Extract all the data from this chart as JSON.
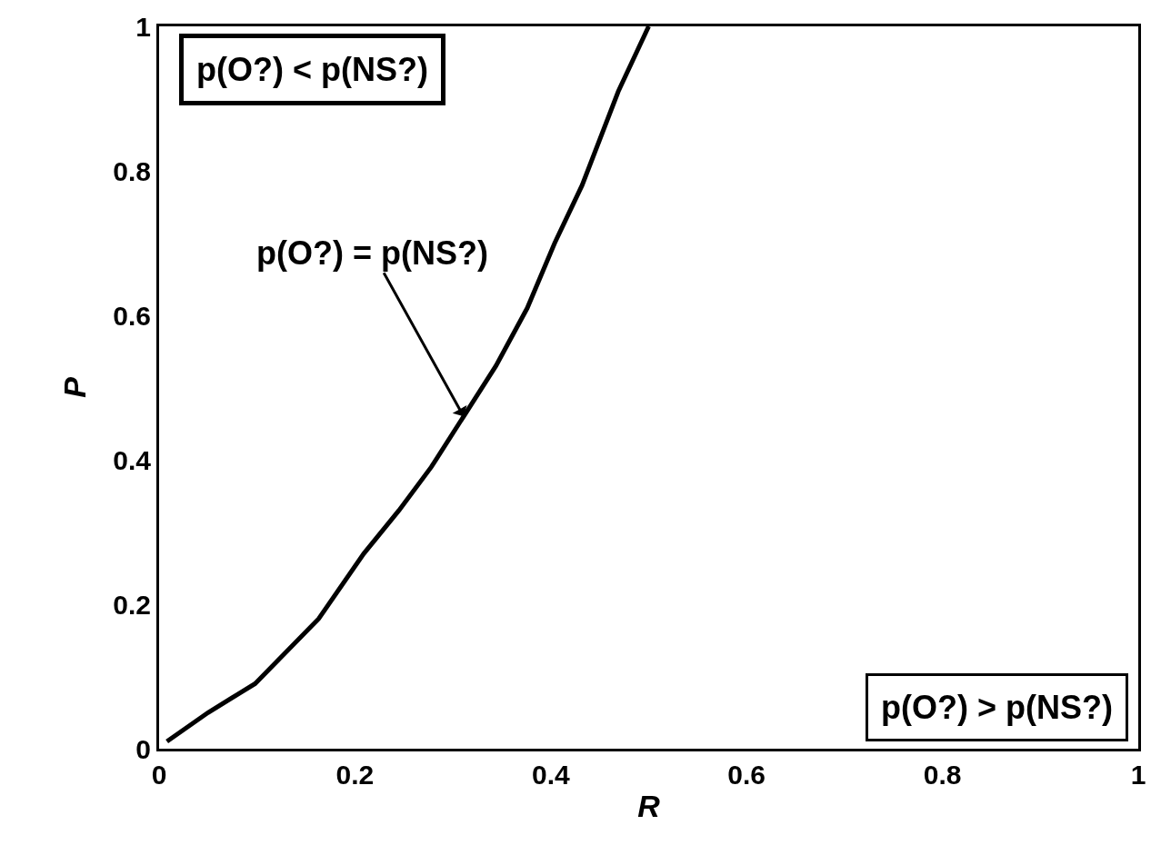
{
  "chart_data": {
    "type": "line",
    "xlabel": "R",
    "ylabel": "P",
    "x": [
      0.008,
      0.05,
      0.098,
      0.163,
      0.209,
      0.245,
      0.278,
      0.311,
      0.344,
      0.376,
      0.404,
      0.432,
      0.469,
      0.5
    ],
    "series": [
      {
        "color": "#000000",
        "values": [
          0.01,
          0.05,
          0.09,
          0.18,
          0.27,
          0.33,
          0.39,
          0.46,
          0.53,
          0.61,
          0.7,
          0.78,
          0.91,
          1.0
        ]
      }
    ],
    "xlim": [
      0,
      1
    ],
    "ylim": [
      0,
      1
    ],
    "xticks": [
      0,
      0.2,
      0.4,
      0.6,
      0.8,
      1
    ],
    "yticks": [
      0,
      0.2,
      0.4,
      0.6,
      0.8,
      1
    ],
    "marker": "none",
    "line_style": "solid",
    "annotations": [
      "p(O?) < p(NS?)",
      {
        "text": "p(O?) = p(NS?)",
        "x": 0.311,
        "y": 0.46
      },
      "p(O?) > p(NS?)"
    ]
  }
}
